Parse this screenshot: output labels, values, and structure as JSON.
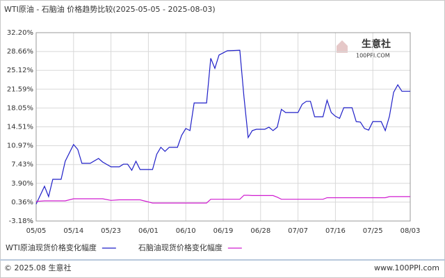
{
  "chart_data": {
    "type": "line",
    "title": "WTI原油 - 石脑油 价格趋势比较(2025-05-05 - 2025-08-03)",
    "watermark": [
      "生意社",
      "100PPI.COM"
    ],
    "footer_left": "© 2025.08 生意社",
    "footer_right": "www.100PPI.com",
    "x": [
      "05/05",
      "05/07",
      "05/08",
      "05/09",
      "05/11",
      "05/12",
      "05/14",
      "05/15",
      "05/16",
      "05/18",
      "05/20",
      "05/21",
      "05/23",
      "05/25",
      "05/26",
      "05/27",
      "05/28",
      "05/29",
      "05/30",
      "06/02",
      "06/03",
      "06/04",
      "06/05",
      "06/06",
      "06/08",
      "06/09",
      "06/10",
      "06/11",
      "06/12",
      "06/15",
      "06/16",
      "06/17",
      "06/18",
      "06/20",
      "06/23",
      "06/24",
      "06/25",
      "06/26",
      "06/27",
      "06/29",
      "06/30",
      "07/01",
      "07/02",
      "07/03",
      "07/04",
      "07/07",
      "07/08",
      "07/09",
      "07/10",
      "07/11",
      "07/13",
      "07/14",
      "07/15",
      "07/16",
      "07/17",
      "07/18",
      "07/20",
      "07/21",
      "07/22",
      "07/23",
      "07/24",
      "07/25",
      "07/27",
      "07/28",
      "07/29",
      "07/30",
      "07/31",
      "08/01",
      "08/03"
    ],
    "series": [
      {
        "name": "WTI原油现货价格变化幅度",
        "color": "#1f1fc8",
        "values": [
          0,
          3.35,
          1.4,
          4.65,
          4.65,
          8.05,
          11.18,
          10.27,
          7.65,
          7.65,
          8.57,
          7.9,
          7.0,
          7.0,
          7.5,
          7.5,
          6.35,
          8.05,
          6.5,
          6.5,
          9.35,
          10.66,
          9.9,
          10.66,
          10.66,
          12.9,
          14.2,
          13.8,
          19.0,
          19.0,
          27.4,
          25.5,
          28.0,
          28.8,
          28.9,
          20.1,
          12.5,
          13.8,
          14.05,
          14.05,
          14.45,
          13.8,
          14.45,
          17.8,
          17.2,
          17.2,
          18.75,
          19.3,
          19.3,
          16.4,
          16.4,
          19.5,
          17.2,
          16.5,
          16.1,
          18.1,
          18.1,
          15.5,
          15.4,
          14.2,
          13.9,
          15.5,
          15.5,
          13.8,
          16.5,
          21.0,
          22.4,
          21.2,
          21.2
        ]
      },
      {
        "name": "石脑油现货价格变化幅度",
        "color": "#d01cd0",
        "values": [
          0.5,
          0.6,
          0.6,
          0.6,
          0.6,
          0.6,
          1.0,
          1.0,
          1.0,
          1.0,
          1.0,
          1.0,
          0.7,
          0.8,
          0.8,
          0.8,
          0.8,
          0.8,
          0.8,
          0.2,
          0.2,
          0.2,
          0.2,
          0.2,
          0.2,
          0.2,
          0.2,
          0.2,
          0.2,
          0.2,
          0.9,
          0.9,
          0.9,
          0.9,
          0.9,
          1.65,
          1.65,
          1.6,
          1.6,
          1.6,
          1.6,
          1.6,
          1.3,
          0.9,
          0.9,
          0.9,
          0.9,
          0.9,
          0.9,
          0.9,
          0.9,
          1.2,
          1.2,
          1.2,
          1.2,
          1.2,
          1.2,
          1.2,
          1.2,
          1.2,
          1.2,
          1.2,
          1.2,
          1.2,
          1.4,
          1.4,
          1.4,
          1.4,
          1.4
        ]
      }
    ],
    "xlim": [
      "05/05",
      "08/03"
    ],
    "xticks": [
      "05/05",
      "05/14",
      "05/23",
      "06/01",
      "06/10",
      "06/19",
      "06/28",
      "07/07",
      "07/16",
      "07/25",
      "08/03"
    ],
    "ylim": [
      -3.18,
      32.2
    ],
    "yticks": [
      {
        "value": -3.18,
        "label": "-3.18%"
      },
      {
        "value": 0.36,
        "label": "0.36%"
      },
      {
        "value": 3.9,
        "label": "3.90%"
      },
      {
        "value": 7.43,
        "label": "7.43%"
      },
      {
        "value": 10.97,
        "label": "10.97%"
      },
      {
        "value": 14.51,
        "label": "14.51%"
      },
      {
        "value": 18.05,
        "label": "18.05%"
      },
      {
        "value": 21.59,
        "label": "21.59%"
      },
      {
        "value": 25.12,
        "label": "25.12%"
      },
      {
        "value": 28.66,
        "label": "28.66%"
      },
      {
        "value": 32.2,
        "label": "32.20%"
      }
    ],
    "grid": true,
    "legend": "bottom"
  }
}
